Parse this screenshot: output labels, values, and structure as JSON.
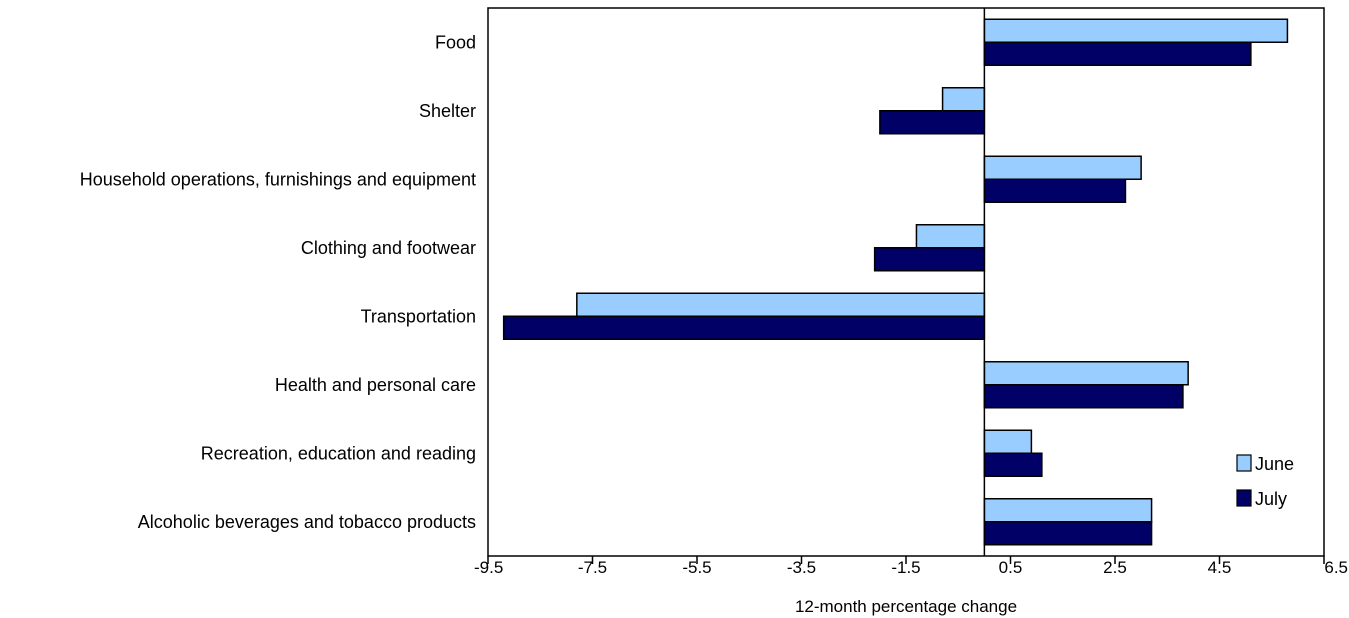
{
  "chart_data": {
    "type": "bar",
    "orientation": "horizontal",
    "categories": [
      "Food",
      "Shelter",
      "Household operations, furnishings and equipment",
      "Clothing and footwear",
      "Transportation",
      "Health and personal care",
      "Recreation, education and reading",
      "Alcoholic beverages and tobacco products"
    ],
    "series": [
      {
        "name": "June",
        "color": "#99ccff",
        "values": [
          5.8,
          -0.8,
          3.0,
          -1.3,
          -7.8,
          3.9,
          0.9,
          3.2
        ]
      },
      {
        "name": "July",
        "color": "#000066",
        "values": [
          5.1,
          -2.0,
          2.7,
          -2.1,
          -9.2,
          3.8,
          1.1,
          3.2
        ]
      }
    ],
    "xlabel": "12-month percentage change",
    "ylabel": "",
    "xlim": [
      -9.5,
      6.5
    ],
    "xticks": [
      "-9.5",
      "-7.5",
      "-5.5",
      "-3.5",
      "-1.5",
      "0.5",
      "2.5",
      "4.5",
      "6.5"
    ],
    "grid": false,
    "legend_position": "bottom-right"
  }
}
